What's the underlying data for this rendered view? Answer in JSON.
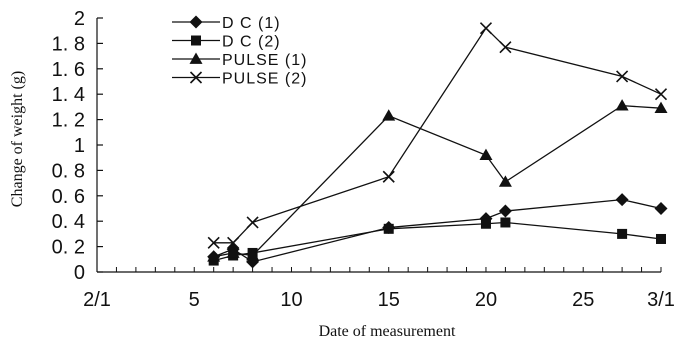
{
  "chart_data": {
    "type": "line",
    "xlabel": "Date of measurement",
    "ylabel": "Change of weight (g)",
    "xlim": [
      0,
      29
    ],
    "ylim": [
      0,
      2
    ],
    "x_ticks": [
      {
        "value": 0,
        "label": "2/1"
      },
      {
        "value": 5,
        "label": "5"
      },
      {
        "value": 10,
        "label": "10"
      },
      {
        "value": 15,
        "label": "15"
      },
      {
        "value": 20,
        "label": "20"
      },
      {
        "value": 25,
        "label": "25"
      },
      {
        "value": 29,
        "label": "3/1"
      }
    ],
    "y_ticks": [
      {
        "value": 0,
        "label": "0"
      },
      {
        "value": 0.2,
        "label": "0. 2"
      },
      {
        "value": 0.4,
        "label": "0. 4"
      },
      {
        "value": 0.6,
        "label": "0. 6"
      },
      {
        "value": 0.8,
        "label": "0. 8"
      },
      {
        "value": 1.0,
        "label": "1"
      },
      {
        "value": 1.2,
        "label": "1. 2"
      },
      {
        "value": 1.4,
        "label": "1. 4"
      },
      {
        "value": 1.6,
        "label": "1. 6"
      },
      {
        "value": 1.8,
        "label": "1. 8"
      },
      {
        "value": 2.0,
        "label": "2"
      }
    ],
    "legend_position": "top-left",
    "grid": false,
    "series": [
      {
        "name": "D C (1)",
        "marker": "diamond",
        "x": [
          6,
          7,
          8,
          15,
          20,
          21,
          27,
          29
        ],
        "y": [
          0.12,
          0.18,
          0.08,
          0.35,
          0.42,
          0.48,
          0.57,
          0.5
        ]
      },
      {
        "name": "D C (2)",
        "marker": "square",
        "x": [
          6,
          7,
          8,
          15,
          20,
          21,
          27,
          29
        ],
        "y": [
          0.09,
          0.13,
          0.15,
          0.34,
          0.38,
          0.39,
          0.3,
          0.26
        ]
      },
      {
        "name": "PULSE (1)",
        "marker": "triangle",
        "x": [
          6,
          7,
          8,
          15,
          20,
          21,
          27,
          29
        ],
        "y": [
          0.12,
          0.15,
          0.13,
          1.23,
          0.92,
          0.71,
          1.31,
          1.29
        ]
      },
      {
        "name": "PULSE (2)",
        "marker": "cross",
        "x": [
          6,
          7,
          8,
          15,
          20,
          21,
          27,
          29
        ],
        "y": [
          0.23,
          0.23,
          0.39,
          0.75,
          1.92,
          1.77,
          1.54,
          1.4
        ]
      }
    ]
  }
}
